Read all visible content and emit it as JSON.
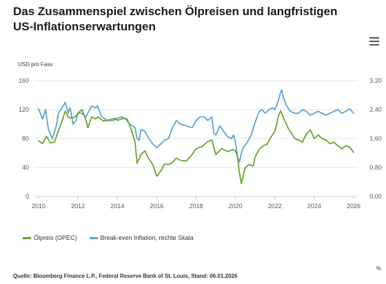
{
  "title": "Das Zusammenspiel zwischen Ölpreisen und langfristigen US-Inflationserwartungen",
  "menu_icon": "hamburger-menu-icon",
  "source": "Quelle:  Bloomberg Finance L.P., Federal Reserve Bank of St. Louis, Stand: 06.01.2026",
  "chart_data": {
    "type": "line",
    "ylabel_left": "USD pro Fass",
    "ylabel_right": "%",
    "xlim": [
      2010,
      2026
    ],
    "ylim_left": [
      0,
      160
    ],
    "ylim_right": [
      0,
      3.2
    ],
    "x_ticks": [
      "2010",
      "2012",
      "2014",
      "2016",
      "2018",
      "2020",
      "2022",
      "2024",
      "2026"
    ],
    "y_ticks_left": [
      "0",
      "40",
      "80",
      "120",
      "160"
    ],
    "y_ticks_right": [
      "0.00",
      "0.80",
      "1.60",
      "2.40",
      "3.20"
    ],
    "grid": true,
    "legend_position": "bottom-left",
    "series": [
      {
        "name": "Ölpreis (OPEC)",
        "axis": "left",
        "color": "#6aa22e",
        "x": [
          2010.0,
          2010.2,
          2010.4,
          2010.6,
          2010.8,
          2011.0,
          2011.2,
          2011.35,
          2011.5,
          2011.7,
          2011.9,
          2012.0,
          2012.2,
          2012.4,
          2012.5,
          2012.7,
          2012.9,
          2013.0,
          2013.3,
          2013.6,
          2013.9,
          2014.0,
          2014.3,
          2014.5,
          2014.7,
          2014.9,
          2015.0,
          2015.2,
          2015.4,
          2015.6,
          2015.8,
          2016.0,
          2016.2,
          2016.4,
          2016.6,
          2016.8,
          2017.0,
          2017.2,
          2017.5,
          2017.8,
          2018.0,
          2018.3,
          2018.6,
          2018.8,
          2019.0,
          2019.3,
          2019.6,
          2019.9,
          2020.0,
          2020.1,
          2020.2,
          2020.3,
          2020.5,
          2020.7,
          2020.9,
          2021.0,
          2021.2,
          2021.4,
          2021.6,
          2021.8,
          2022.0,
          2022.2,
          2022.3,
          2022.5,
          2022.7,
          2022.9,
          2023.0,
          2023.2,
          2023.4,
          2023.6,
          2023.8,
          2024.0,
          2024.2,
          2024.4,
          2024.6,
          2024.8,
          2025.0,
          2025.2,
          2025.4,
          2025.6,
          2025.8,
          2026.0
        ],
        "values": [
          77,
          73,
          83,
          74,
          75,
          90,
          105,
          118,
          110,
          108,
          111,
          115,
          120,
          106,
          95,
          110,
          107,
          110,
          104,
          106,
          108,
          105,
          108,
          107,
          93,
          75,
          46,
          58,
          63,
          52,
          44,
          28,
          35,
          45,
          44,
          47,
          53,
          50,
          49,
          58,
          66,
          69,
          76,
          78,
          58,
          66,
          62,
          65,
          63,
          55,
          33,
          18,
          40,
          44,
          42,
          55,
          65,
          70,
          72,
          82,
          90,
          113,
          118,
          105,
          93,
          85,
          80,
          78,
          75,
          86,
          92,
          80,
          85,
          80,
          78,
          73,
          75,
          70,
          66,
          70,
          68,
          61
        ]
      },
      {
        "name": "Break-even Inflation, rechte Skala",
        "axis": "right",
        "color": "#5ba3d6",
        "x": [
          2010.0,
          2010.2,
          2010.35,
          2010.5,
          2010.7,
          2010.9,
          2011.0,
          2011.2,
          2011.35,
          2011.5,
          2011.6,
          2011.75,
          2011.9,
          2012.0,
          2012.2,
          2012.4,
          2012.5,
          2012.7,
          2012.9,
          2013.0,
          2013.2,
          2013.5,
          2013.8,
          2014.0,
          2014.2,
          2014.4,
          2014.6,
          2014.8,
          2014.9,
          2015.0,
          2015.1,
          2015.2,
          2015.4,
          2015.6,
          2015.8,
          2016.0,
          2016.2,
          2016.4,
          2016.6,
          2016.8,
          2016.9,
          2017.0,
          2017.2,
          2017.5,
          2017.8,
          2018.0,
          2018.2,
          2018.4,
          2018.6,
          2018.8,
          2018.9,
          2019.0,
          2019.2,
          2019.4,
          2019.6,
          2019.8,
          2019.9,
          2020.0,
          2020.1,
          2020.2,
          2020.3,
          2020.4,
          2020.6,
          2020.8,
          2021.0,
          2021.2,
          2021.35,
          2021.5,
          2021.7,
          2021.9,
          2022.0,
          2022.15,
          2022.25,
          2022.35,
          2022.45,
          2022.6,
          2022.8,
          2023.0,
          2023.2,
          2023.4,
          2023.6,
          2023.8,
          2024.0,
          2024.2,
          2024.4,
          2024.6,
          2024.8,
          2025.0,
          2025.2,
          2025.4,
          2025.6,
          2025.8,
          2026.0
        ],
        "values": [
          2.42,
          2.14,
          2.4,
          1.85,
          1.6,
          1.95,
          2.3,
          2.46,
          2.6,
          2.3,
          2.45,
          2.0,
          2.1,
          2.3,
          2.3,
          2.2,
          2.3,
          2.5,
          2.45,
          2.5,
          2.2,
          2.1,
          2.1,
          2.16,
          2.2,
          2.16,
          2.0,
          1.95,
          1.9,
          1.6,
          1.55,
          1.85,
          1.8,
          1.6,
          1.45,
          1.35,
          1.45,
          1.55,
          1.6,
          1.9,
          2.0,
          2.1,
          2.0,
          1.95,
          1.9,
          2.1,
          2.2,
          2.2,
          2.1,
          2.2,
          1.75,
          1.7,
          1.95,
          1.8,
          1.65,
          1.6,
          1.7,
          1.5,
          1.1,
          0.95,
          1.2,
          1.35,
          1.5,
          1.7,
          2.05,
          2.35,
          2.4,
          2.3,
          2.4,
          2.45,
          2.4,
          2.6,
          2.8,
          2.95,
          2.7,
          2.5,
          2.35,
          2.3,
          2.3,
          2.4,
          2.35,
          2.25,
          2.3,
          2.35,
          2.3,
          2.25,
          2.3,
          2.35,
          2.4,
          2.3,
          2.35,
          2.42,
          2.3
        ]
      }
    ]
  }
}
